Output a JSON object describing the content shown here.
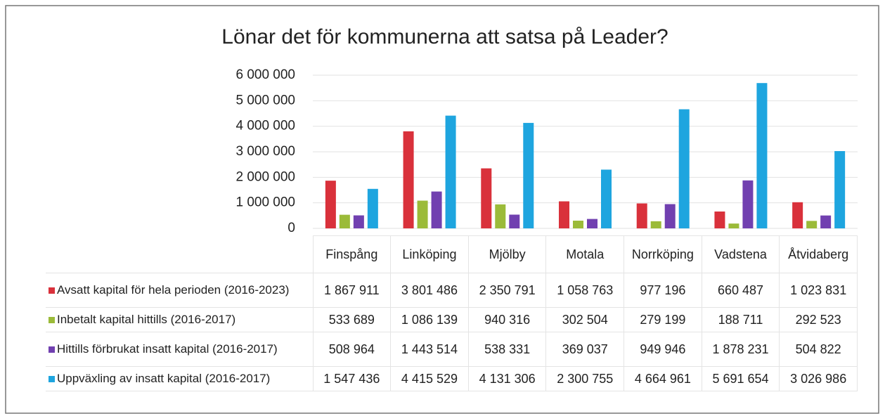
{
  "chart_data": {
    "type": "bar",
    "title": "Lönar det för kommunerna att satsa på Leader?",
    "categories": [
      "Finspång",
      "Linköping",
      "Mjölby",
      "Motala",
      "Norrköping",
      "Vadstena",
      "Åtvidaberg"
    ],
    "series": [
      {
        "name": "Avsatt kapital för hela perioden (2016-2023)",
        "color": "#d9313b",
        "values": [
          1867911,
          3801486,
          2350791,
          1058763,
          977196,
          660487,
          1023831
        ],
        "value_labels": [
          "1 867 911",
          "3 801 486",
          "2 350 791",
          "1 058 763",
          "977 196",
          "660 487",
          "1 023 831"
        ]
      },
      {
        "name": "Inbetalt kapital hittills (2016-2017)",
        "color": "#9bbb39",
        "values": [
          533689,
          1086139,
          940316,
          302504,
          279199,
          188711,
          292523
        ],
        "value_labels": [
          "533 689",
          "1 086 139",
          "940 316",
          "302 504",
          "279 199",
          "188 711",
          "292 523"
        ]
      },
      {
        "name": "Hittills förbrukat insatt kapital (2016-2017)",
        "color": "#7140b0",
        "values": [
          508964,
          1443514,
          538331,
          369037,
          949946,
          1878231,
          504822
        ],
        "value_labels": [
          "508 964",
          "1 443 514",
          "538 331",
          "369 037",
          "949 946",
          "1 878 231",
          "504 822"
        ]
      },
      {
        "name": "Uppväxling av insatt kapital (2016-2017)",
        "color": "#1ea5df",
        "values": [
          1547436,
          4415529,
          4131306,
          2300755,
          4664961,
          5691654,
          3026986
        ],
        "value_labels": [
          "1 547 436",
          "4 415 529",
          "4 131 306",
          "2 300 755",
          "4 664 961",
          "5 691 654",
          "3 026 986"
        ]
      }
    ],
    "ylim": [
      0,
      6000000
    ],
    "yticks": [
      0,
      {
        "value": 1000000,
        "label": "1 000 000"
      },
      {
        "value": 2000000,
        "label": "2 000 000"
      },
      {
        "value": 3000000,
        "label": "3 000 000"
      },
      {
        "value": 4000000,
        "label": "4 000 000"
      },
      {
        "value": 5000000,
        "label": "5 000 000"
      },
      {
        "value": 6000000,
        "label": "6 000 000"
      }
    ],
    "grid": true
  }
}
